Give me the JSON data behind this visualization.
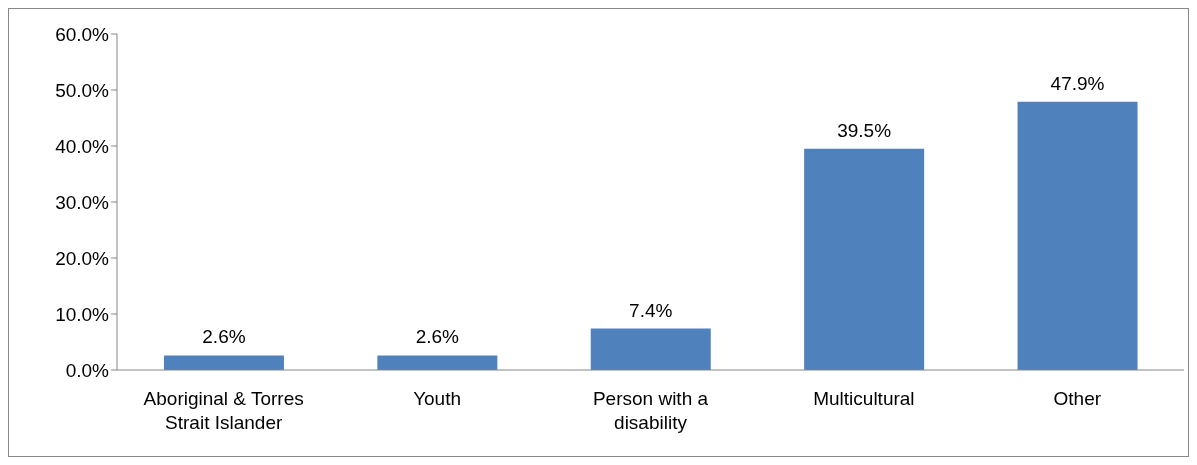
{
  "chart_data": {
    "type": "bar",
    "categories": [
      "Aboriginal & Torres Strait Islander",
      "Youth",
      "Person with a disability",
      "Multicultural",
      "Other"
    ],
    "values": [
      2.6,
      2.6,
      7.4,
      39.5,
      47.9
    ],
    "value_labels": [
      "2.6%",
      "2.6%",
      "7.4%",
      "39.5%",
      "47.9%"
    ],
    "color": "#4f81bd",
    "ylim": [
      0,
      60
    ],
    "yticks": [
      {
        "value": 0,
        "label": "0.0%"
      },
      {
        "value": 10,
        "label": "10.0%"
      },
      {
        "value": 20,
        "label": "20.0%"
      },
      {
        "value": 30,
        "label": "30.0%"
      },
      {
        "value": 40,
        "label": "40.0%"
      },
      {
        "value": 50,
        "label": "50.0%"
      },
      {
        "value": 60,
        "label": "60.0%"
      }
    ],
    "grid": false,
    "legend": false
  }
}
